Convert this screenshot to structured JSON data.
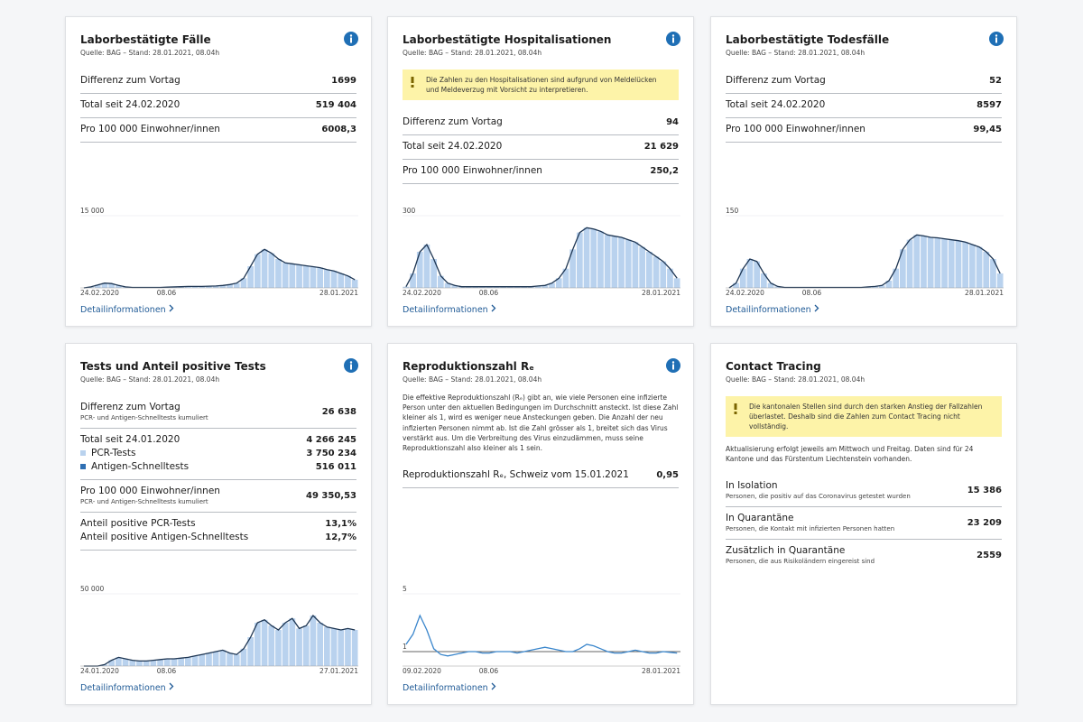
{
  "cards": [
    {
      "title": "Laborbestätigte Fälle",
      "source": "Quelle: BAG – Stand: 28.01.2021, 08.04h",
      "info": true,
      "groups": [
        [
          {
            "label": "Differenz zum Vortag",
            "value": "1699"
          }
        ],
        [
          {
            "label": "Total seit 24.02.2020",
            "value": "519 404"
          }
        ],
        [
          {
            "label": "Pro 100 000 Einwohner/innen",
            "value": "6008,3"
          }
        ]
      ],
      "chart": {
        "type": "bar",
        "ylim": [
          0,
          15000
        ],
        "yticks": [
          {
            "value": 15000,
            "label": "15 000"
          }
        ],
        "x_labels": [
          "24.02.2020",
          "08.06",
          "28.01.2021"
        ],
        "bar_color": "#b9d2ee",
        "line_color": "#1d3552",
        "values": [
          0,
          200,
          600,
          1000,
          900,
          500,
          200,
          100,
          100,
          100,
          100,
          100,
          150,
          200,
          250,
          300,
          300,
          300,
          350,
          400,
          500,
          700,
          1000,
          2000,
          4500,
          7000,
          8000,
          7200,
          6000,
          5200,
          5000,
          4800,
          4600,
          4400,
          4200,
          3800,
          3500,
          3000,
          2500,
          1700
        ]
      },
      "link": "Detailinformationen"
    },
    {
      "title": "Laborbestätigte Hospitalisationen",
      "source": "Quelle: BAG – Stand: 28.01.2021, 08.04h",
      "info": true,
      "note": "Die Zahlen zu den Hospitalisationen sind aufgrund von Meldelücken und Meldeverzug mit Vorsicht zu interpretieren.",
      "groups": [
        [
          {
            "label": "Differenz zum Vortag",
            "value": "94"
          }
        ],
        [
          {
            "label": "Total seit 24.02.2020",
            "value": "21 629"
          }
        ],
        [
          {
            "label": "Pro 100 000 Einwohner/innen",
            "value": "250,2"
          }
        ]
      ],
      "chart": {
        "type": "bar",
        "ylim": [
          0,
          300
        ],
        "yticks": [
          300
        ],
        "x_labels": [
          "24.02.2020",
          "08.06",
          "28.01.2021"
        ],
        "bar_color": "#b9d2ee",
        "line_color": "#1d3552",
        "values": [
          5,
          60,
          150,
          180,
          120,
          50,
          20,
          10,
          5,
          5,
          5,
          5,
          5,
          5,
          5,
          5,
          5,
          5,
          5,
          8,
          10,
          20,
          40,
          80,
          160,
          230,
          250,
          245,
          235,
          220,
          215,
          210,
          200,
          190,
          170,
          150,
          130,
          110,
          80,
          40
        ]
      },
      "link": "Detailinformationen"
    },
    {
      "title": "Laborbestätigte Todesfälle",
      "source": "Quelle: BAG – Stand: 28.01.2021, 08.04h",
      "info": true,
      "groups": [
        [
          {
            "label": "Differenz zum Vortag",
            "value": "52"
          }
        ],
        [
          {
            "label": "Total seit 24.02.2020",
            "value": "8597"
          }
        ],
        [
          {
            "label": "Pro 100 000 Einwohner/innen",
            "value": "99,45"
          }
        ]
      ],
      "chart": {
        "type": "bar",
        "ylim": [
          0,
          150
        ],
        "yticks": [
          150
        ],
        "x_labels": [
          "24.02.2020",
          "08.06",
          "28.01.2021"
        ],
        "bar_color": "#b9d2ee",
        "line_color": "#1d3552",
        "values": [
          0,
          10,
          40,
          60,
          55,
          30,
          10,
          3,
          1,
          1,
          1,
          1,
          1,
          1,
          1,
          1,
          1,
          1,
          1,
          1,
          2,
          3,
          5,
          15,
          40,
          80,
          100,
          110,
          108,
          105,
          104,
          102,
          100,
          98,
          95,
          90,
          85,
          75,
          60,
          30
        ]
      },
      "link": "Detailinformationen"
    },
    {
      "title": "Tests und Anteil positive Tests",
      "source": "Quelle: BAG – Stand: 28.01.2021, 08.04h",
      "info": true,
      "groups": [
        [
          {
            "label": "Differenz zum Vortag",
            "sub": "PCR- und Antigen-Schnelltests kumuliert",
            "value": "26 638"
          }
        ],
        [
          {
            "label": "Total seit 24.01.2020",
            "value": "4 266 245"
          },
          {
            "label": "PCR-Tests",
            "value": "3 750 234",
            "swatch": "#b9d2ee"
          },
          {
            "label": "Antigen-Schnelltests",
            "value": "516 011",
            "swatch": "#2f6fb3"
          }
        ],
        [
          {
            "label": "Pro 100 000 Einwohner/innen",
            "sub": "PCR- und Antigen-Schnelltests kumuliert",
            "value": "49 350,53"
          }
        ],
        [
          {
            "label": "Anteil positive PCR-Tests",
            "value": "13,1%"
          },
          {
            "label": "Anteil positive Antigen-Schnelltests",
            "value": "12,7%"
          }
        ]
      ],
      "chart": {
        "type": "bar",
        "ylim": [
          0,
          50000
        ],
        "yticks": [
          {
            "value": 50000,
            "label": "50 000"
          }
        ],
        "x_labels": [
          "24.01.2020",
          "08.06",
          "27.01.2021"
        ],
        "bar_color": "#b9d2ee",
        "line_color": "#1d3552",
        "values": [
          0,
          0,
          0,
          1000,
          4000,
          6000,
          5000,
          4000,
          3500,
          3500,
          4000,
          4500,
          5000,
          5000,
          5500,
          6000,
          7000,
          8000,
          9000,
          10000,
          11000,
          9000,
          8000,
          12000,
          20000,
          30000,
          32000,
          28000,
          25000,
          30000,
          33000,
          26000,
          28000,
          35000,
          30000,
          27000,
          26000,
          25000,
          26000,
          25000
        ]
      },
      "link": "Detailinformationen"
    },
    {
      "title": "Reproduktionszahl Rₑ",
      "source": "Quelle: BAG – Stand: 28.01.2021, 08.04h",
      "info": true,
      "text": "Die effektive Reproduktionszahl (Rₑ) gibt an, wie viele Personen eine infizierte Person unter den aktuellen Bedingungen im Durchschnitt ansteckt. Ist diese Zahl kleiner als 1, wird es weniger neue Ansteckungen geben. Die Anzahl der neu infizierten Personen nimmt ab. Ist die Zahl grösser als 1, breitet sich das Virus verstärkt aus. Um die Verbreitung des Virus einzudämmen, muss seine Reproduktionszahl also kleiner als 1 sein.",
      "groups": [
        [
          {
            "label": "Reproduktionszahl Rₑ, Schweiz vom 15.01.2021",
            "value": "0,95"
          }
        ]
      ],
      "chart": {
        "type": "line",
        "ylim": [
          0,
          5
        ],
        "yticks": [
          1,
          5
        ],
        "x_labels": [
          "09.02.2020",
          "08.06",
          "28.01.2021"
        ],
        "line_color": "#3a86cc",
        "values": [
          1.5,
          2.2,
          3.5,
          2.5,
          1.2,
          0.8,
          0.7,
          0.8,
          0.9,
          1.0,
          1.0,
          0.9,
          0.9,
          1.0,
          1.0,
          1.0,
          0.9,
          1.0,
          1.1,
          1.2,
          1.3,
          1.2,
          1.1,
          1.0,
          1.0,
          1.2,
          1.5,
          1.4,
          1.2,
          1.0,
          0.9,
          0.9,
          1.0,
          1.1,
          1.0,
          0.9,
          0.9,
          1.0,
          0.95,
          0.9
        ]
      },
      "link": "Detailinformationen"
    },
    {
      "title": "Contact Tracing",
      "source": "Quelle: BAG – Stand: 28.01.2021, 08.04h",
      "info": false,
      "note": "Die kantonalen Stellen sind durch den starken Anstieg der Fallzahlen überlastet. Deshalb sind die Zahlen zum Contact Tracing nicht vollständig.",
      "text": "Aktualisierung erfolgt jeweils am Mittwoch und Freitag. Daten sind für 24 Kantone und das Fürstentum Liechtenstein vorhanden.",
      "groups": [
        [
          {
            "label": "In Isolation",
            "sub": "Personen, die positiv auf das Coronavirus getestet wurden",
            "value": "15 386"
          }
        ],
        [
          {
            "label": "In Quarantäne",
            "sub": "Personen, die Kontakt mit infizierten Personen hatten",
            "value": "23 209"
          }
        ],
        [
          {
            "label": "Zusätzlich in Quarantäne",
            "sub": "Personen, die aus Risikoländern eingereist sind",
            "value": "2559"
          }
        ]
      ]
    }
  ]
}
